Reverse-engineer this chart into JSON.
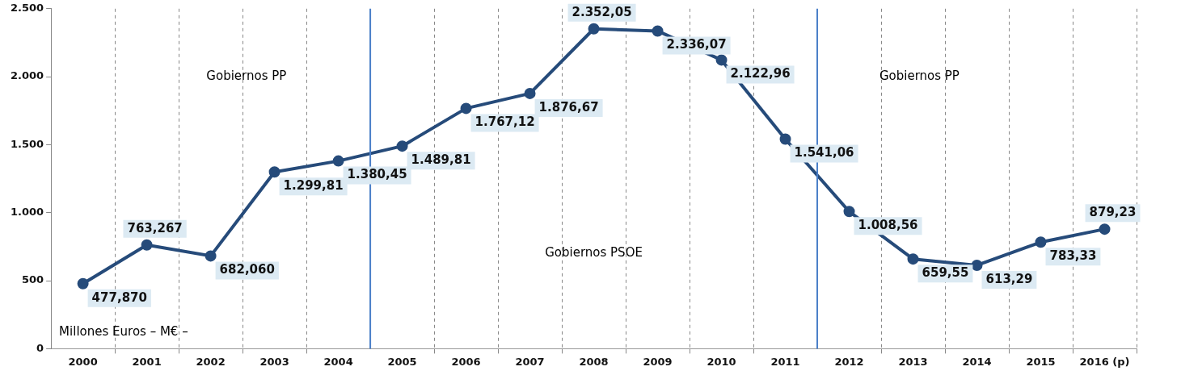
{
  "chart_data": {
    "type": "line",
    "x": [
      2000,
      2001,
      2002,
      2003,
      2004,
      2005,
      2006,
      2007,
      2008,
      2009,
      2010,
      2011,
      2012,
      2013,
      2014,
      2015,
      2016
    ],
    "series": [
      {
        "color": "#264b7a",
        "values": [
          477.87,
          763.267,
          682.06,
          1299.81,
          1380.45,
          1489.81,
          1767.12,
          1876.67,
          2352.05,
          2336.07,
          2122.96,
          1541.06,
          1008.56,
          659.55,
          613.29,
          783.33,
          879.23
        ],
        "value_labels": [
          "477,870",
          "763,267",
          "682,060",
          "1.299,81",
          "1.380,45",
          "1.489,81",
          "1.767,12",
          "1.876,67",
          "2.352,05",
          "2.336,07",
          "2.122,96",
          "1.541,06",
          "1.008,56",
          "659,55",
          "613,29",
          "783,33",
          "879,23"
        ]
      }
    ],
    "xlim": [
      1999.5,
      2016.5
    ],
    "xticks": [
      2000,
      {
        "value": 2000.5,
        "label": null
      },
      2001,
      {
        "value": 2001.5,
        "label": null
      },
      2002,
      {
        "value": 2002.5,
        "label": null
      },
      2003,
      {
        "value": 2003.5,
        "label": null
      },
      2004,
      2005,
      {
        "value": 2005.5,
        "label": null
      },
      2006,
      {
        "value": 2006.5,
        "label": null
      },
      2007,
      {
        "value": 2007.5,
        "label": null
      },
      2008,
      {
        "value": 2008.5,
        "label": null
      },
      2009,
      {
        "value": 2009.5,
        "label": null
      },
      2010,
      {
        "value": 2010.5,
        "label": null
      },
      2011,
      2012,
      {
        "value": 2012.5,
        "label": null
      },
      2013,
      {
        "value": 2013.5,
        "label": null
      },
      2014,
      {
        "value": 2014.5,
        "label": null
      },
      2015,
      {
        "value": 2015.5,
        "label": null
      },
      {
        "value": 2016,
        "label": "2016 (p)"
      },
      {
        "value": 2016.5,
        "label": null
      }
    ],
    "ylim": [
      0,
      2500
    ],
    "yticks": [
      0,
      {
        "value": 500,
        "label": "500"
      },
      {
        "value": 1000,
        "label": "1.000"
      },
      {
        "value": 1500,
        "label": "1.500"
      },
      {
        "value": 2000,
        "label": "2.000"
      },
      {
        "value": 2500,
        "label": "2.500"
      }
    ],
    "grid": "x",
    "legend": false,
    "marker": "circle",
    "line_style": "solid",
    "ref_lines": [
      {
        "axis": "x",
        "value": 2004.5,
        "color": "#4a7fc8"
      },
      {
        "axis": "x",
        "value": 2011.5,
        "color": "#4a7fc8"
      }
    ],
    "annotations": [
      "Gobiernos PP",
      "Gobiernos PSOE",
      "Gobiernos PP",
      "Millones Euros – M€ –"
    ]
  }
}
